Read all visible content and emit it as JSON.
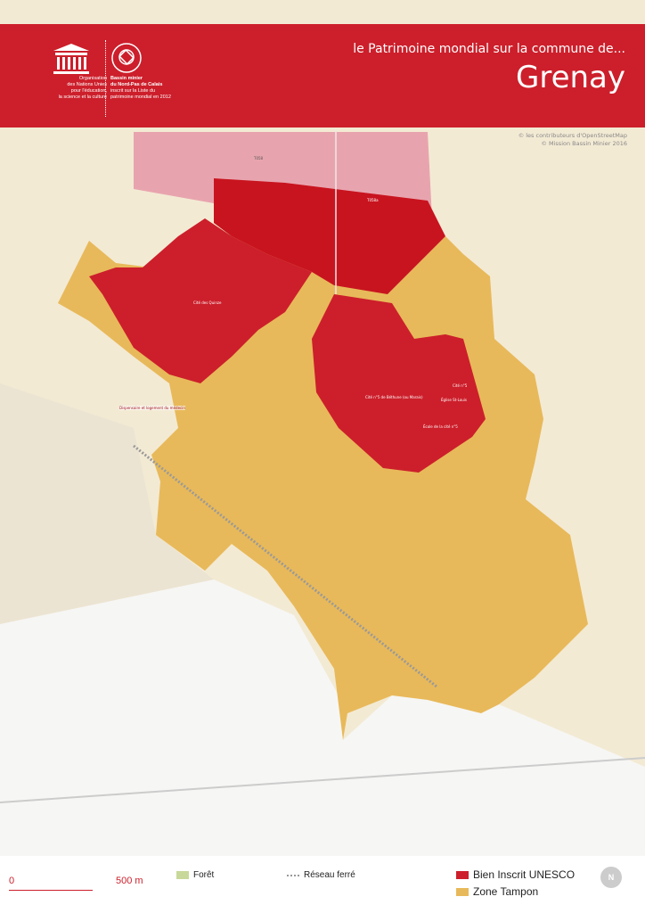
{
  "header": {
    "subtitle": "le Patrimoine mondial sur la commune de...",
    "title": "Grenay",
    "unesco_text": [
      "Organisation",
      "des Nations Unies",
      "pour l'éducation,",
      "la science et la culture"
    ],
    "site_text": [
      "Bassin minier",
      "du Nord-Pas de Calais",
      "inscrit sur la Liste du",
      "patrimoine mondial en 2012"
    ],
    "unesco_logo": "UNESCO"
  },
  "credits": [
    "© les contributeurs d'OpenStreetMap",
    "© Mission Bassin Minier 2016"
  ],
  "map_labels": {
    "terril1": "T058",
    "terril2": "T058a",
    "cite_west": "Cité des Quinze",
    "dispensaire": "Dispensaire et logement du médecin",
    "cite_east": "Cité n°5 de Béthune (ou Marais)",
    "eglise": "Église St-Louis",
    "ecole": "École de la cité n°5",
    "cite_e2": "Cité n°5"
  },
  "legend": {
    "scale_start": "0",
    "scale_end": "500 m",
    "foret": "Forêt",
    "rail": "Réseau ferré",
    "bien": "Bien Inscrit UNESCO",
    "zone": "Zone Tampon",
    "north": "N"
  },
  "colors": {
    "bien": "#cc1f2b",
    "zone": "#e8b95a",
    "foret": "#c8d89a",
    "background": "#f3ead4",
    "terril_zone": "#e8a4ae"
  }
}
